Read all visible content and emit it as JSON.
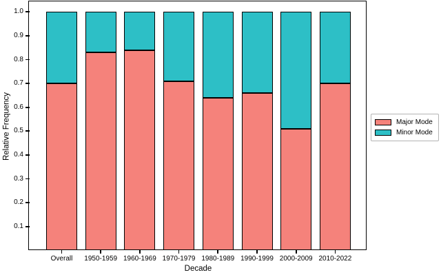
{
  "chart_data": {
    "type": "bar",
    "stacked": true,
    "title": "",
    "xlabel": "Decade",
    "ylabel": "Relative Frequency",
    "categories": [
      "Overall",
      "1950-1959",
      "1960-1969",
      "1970-1979",
      "1980-1989",
      "1990-1999",
      "2000-2009",
      "2010-2022"
    ],
    "series": [
      {
        "name": "Major Mode",
        "color": "#f5827b",
        "values": [
          0.7,
          0.83,
          0.84,
          0.71,
          0.64,
          0.66,
          0.51,
          0.7
        ]
      },
      {
        "name": "Minor Mode",
        "color": "#2dbfc6",
        "values": [
          0.3,
          0.17,
          0.16,
          0.29,
          0.36,
          0.34,
          0.49,
          0.3
        ]
      }
    ],
    "ylim": [
      0,
      1
    ],
    "yticks": [
      0.1,
      0.2,
      0.3,
      0.4,
      0.5,
      0.6,
      0.7,
      0.8,
      0.9,
      1.0
    ],
    "ytick_labels": [
      "0.1",
      "0.2",
      "0.3",
      "0.4",
      "0.5",
      "0.6",
      "0.7",
      "0.8",
      "0.9",
      "1.0"
    ],
    "grid": false,
    "legend_position": "right",
    "bar_edge_color": "#000000",
    "axis_color": "#000000"
  }
}
